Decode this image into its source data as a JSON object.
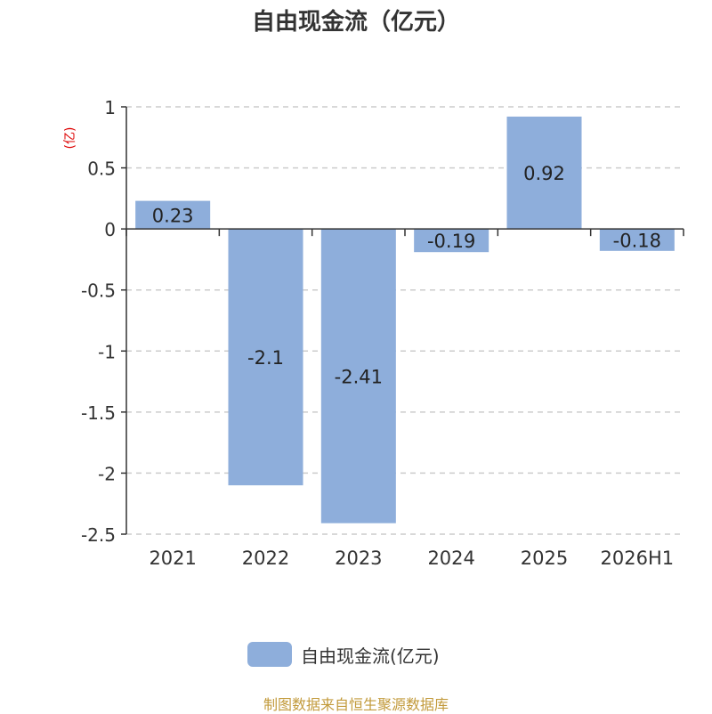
{
  "title": "自由现金流（亿元）",
  "source_note": "制图数据来自恒生聚源数据库",
  "colors": {
    "bar": "#8eaedb",
    "axis": "#333333",
    "grid": "#cccccc",
    "unit_label": "#dd0000",
    "source_text": "#c29a3b"
  },
  "chart_data": {
    "type": "bar",
    "title": "自由现金流（亿元）",
    "categories": [
      "2021",
      "2022",
      "2023",
      "2024",
      "2025",
      "2026H1"
    ],
    "series": [
      {
        "name": "自由现金流(亿元)",
        "values": [
          0.23,
          -2.1,
          -2.41,
          -0.19,
          0.92,
          -0.18
        ],
        "labels": [
          "0.23",
          "-2.1",
          "-2.41",
          "-0.19",
          "0.92",
          "-0.18"
        ]
      }
    ],
    "ylabel": "(亿)",
    "ylim": [
      -2.5,
      1
    ],
    "yticks": [
      1,
      0.5,
      0,
      -0.5,
      -1,
      -1.5,
      -2,
      -2.5
    ],
    "ytick_labels": [
      "1",
      "0.5",
      "0",
      "-0.5",
      "-1",
      "-1.5",
      "-2",
      "-2.5"
    ],
    "grid": true,
    "grid_style": "dashed",
    "legend_position": "bottom"
  }
}
